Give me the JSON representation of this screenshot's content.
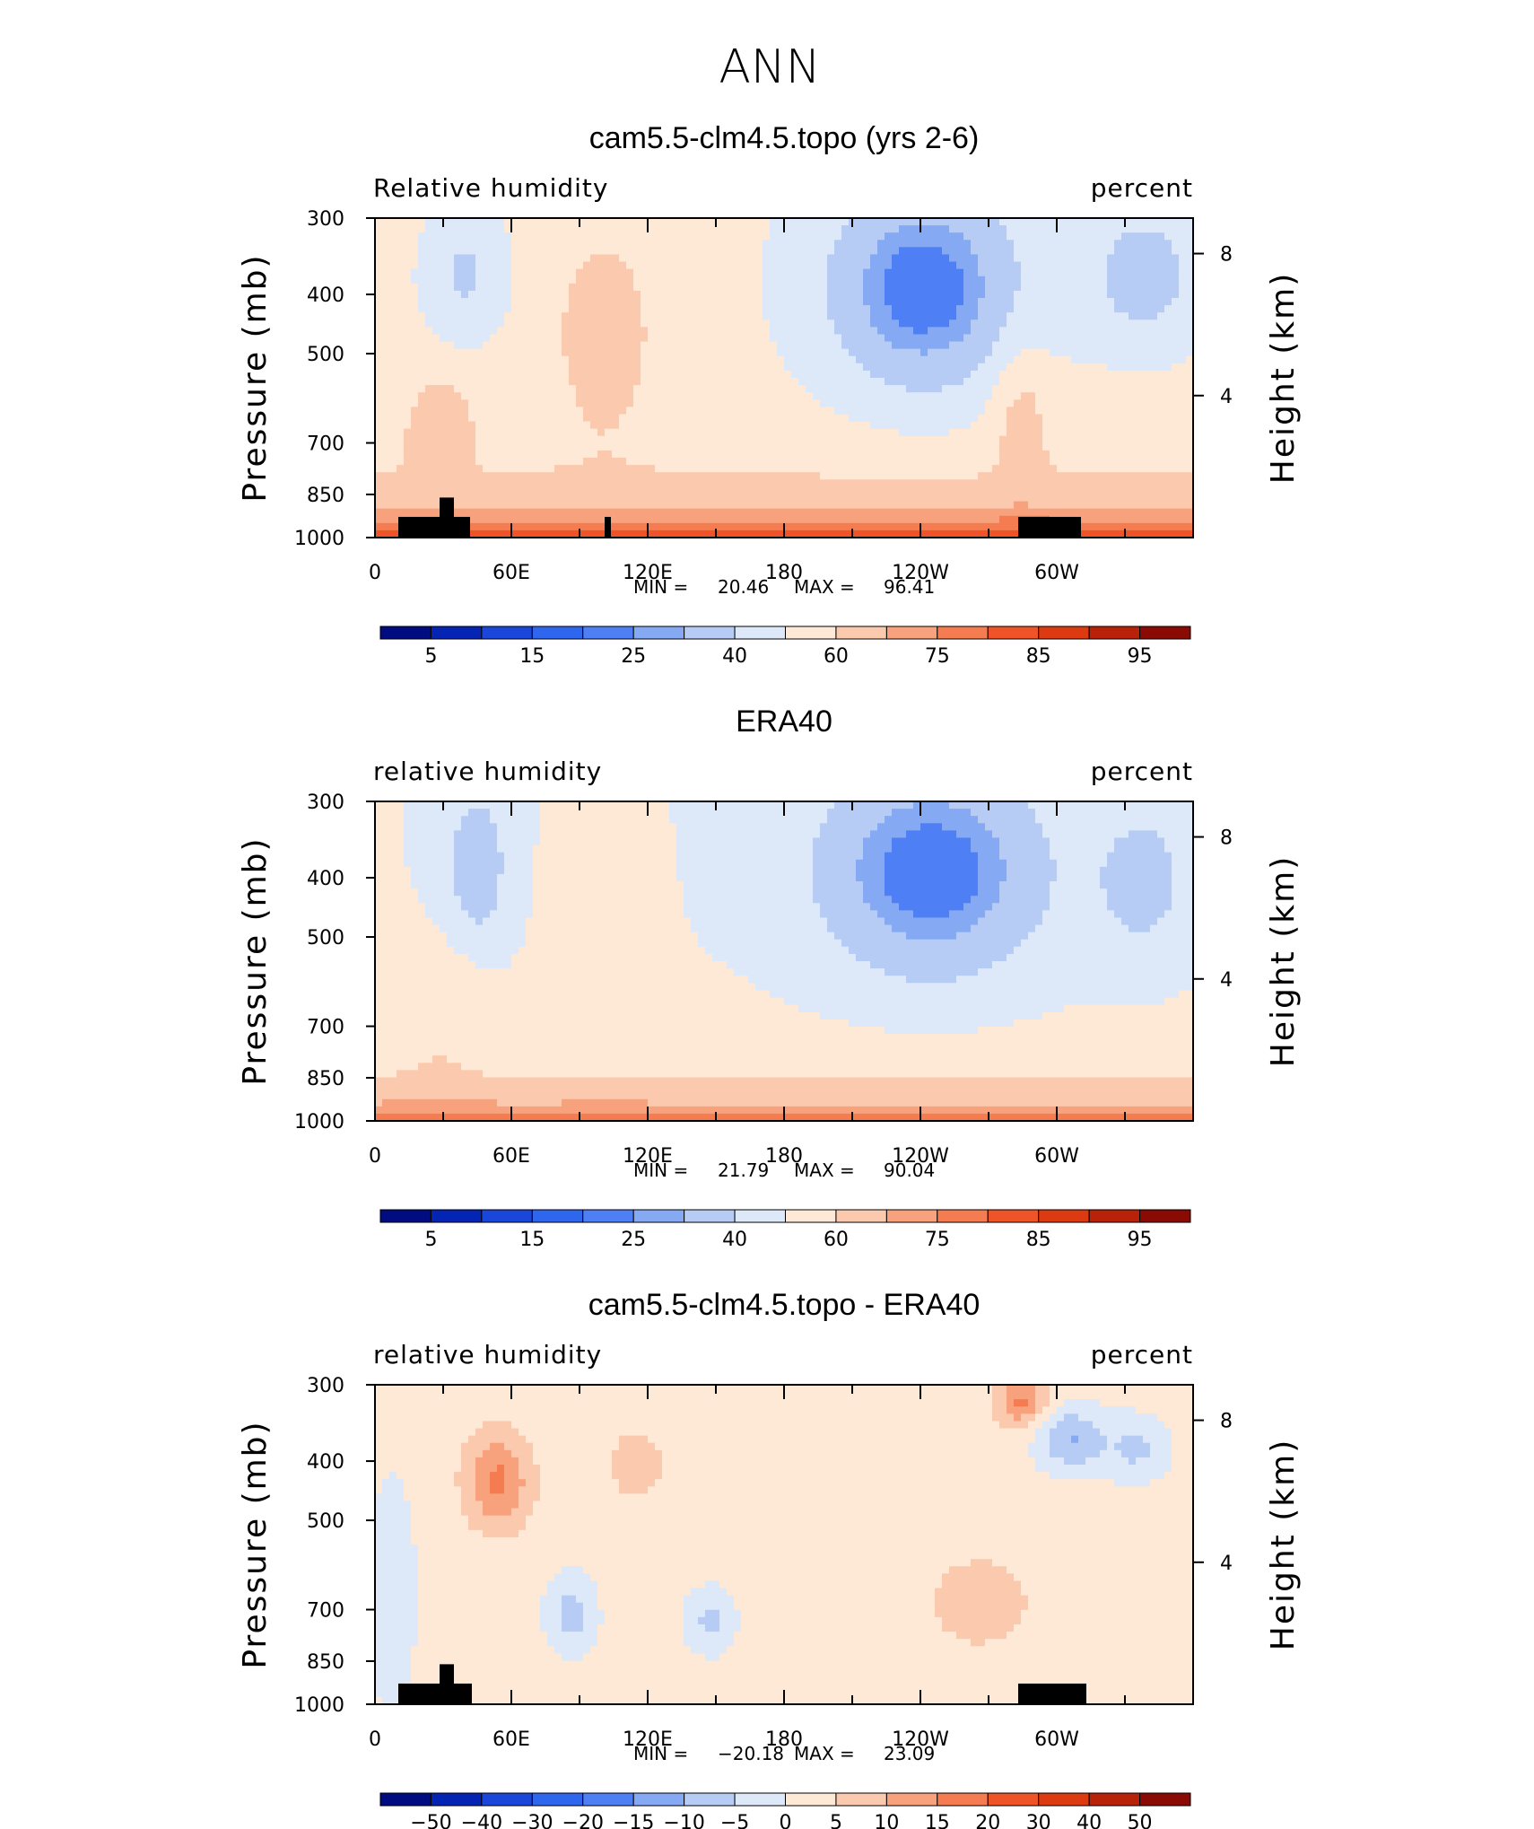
{
  "figure": {
    "title": "ANN"
  },
  "chart_data": [
    {
      "type": "heatmap",
      "title": "cam5.5-clm4.5.topo (yrs 2-6)",
      "left_label": "Relative humidity",
      "right_label": "percent",
      "ylabel": "Pressure (mb)",
      "y2label": "Height (km)",
      "x_ticks": [
        "0",
        "60E",
        "120E",
        "180",
        "120W",
        "60W"
      ],
      "y_ticks": [
        "300",
        "400",
        "500",
        "700",
        "850",
        "1000"
      ],
      "y2_ticks": [
        "8",
        "4"
      ],
      "min_label": "MIN =",
      "min_value": "20.46",
      "max_label": "MAX =",
      "max_value": "96.41",
      "colorbar_labels": [
        "5",
        "15",
        "25",
        "40",
        "60",
        "75",
        "85",
        "95"
      ],
      "terrain": true
    },
    {
      "type": "heatmap",
      "title": "ERA40",
      "left_label": "relative humidity",
      "right_label": "percent",
      "ylabel": "Pressure (mb)",
      "y2label": "Height (km)",
      "x_ticks": [
        "0",
        "60E",
        "120E",
        "180",
        "120W",
        "60W"
      ],
      "y_ticks": [
        "300",
        "400",
        "500",
        "700",
        "850",
        "1000"
      ],
      "y2_ticks": [
        "8",
        "4"
      ],
      "min_label": "MIN =",
      "min_value": "21.79",
      "max_label": "MAX =",
      "max_value": "90.04",
      "colorbar_labels": [
        "5",
        "15",
        "25",
        "40",
        "60",
        "75",
        "85",
        "95"
      ],
      "terrain": false
    },
    {
      "type": "heatmap",
      "title": "cam5.5-clm4.5.topo - ERA40",
      "left_label": "relative humidity",
      "right_label": "percent",
      "ylabel": "Pressure (mb)",
      "y2label": "Height (km)",
      "x_ticks": [
        "0",
        "60E",
        "120E",
        "180",
        "120W",
        "60W"
      ],
      "y_ticks": [
        "300",
        "400",
        "500",
        "700",
        "850",
        "1000"
      ],
      "y2_ticks": [
        "8",
        "4"
      ],
      "min_label": "MIN =",
      "min_value": "−20.18",
      "max_label": "MAX =",
      "max_value": "23.09",
      "colorbar_labels": [
        "−50",
        "−40",
        "−30",
        "−20",
        "−15",
        "−10",
        "−5",
        "0",
        "5",
        "10",
        "15",
        "20",
        "30",
        "40",
        "50"
      ],
      "terrain": true
    }
  ],
  "colors": {
    "scale": [
      "#000c80",
      "#0425b4",
      "#1a46d9",
      "#2f66ee",
      "#4f7ff5",
      "#86a9f4",
      "#b7ccf5",
      "#dde8f8",
      "#fde9d6",
      "#fbc9ae",
      "#f7a27c",
      "#f47c50",
      "#ee5428",
      "#dc3a10",
      "#b82208",
      "#8a0a04"
    ],
    "terrain": "#000000"
  }
}
